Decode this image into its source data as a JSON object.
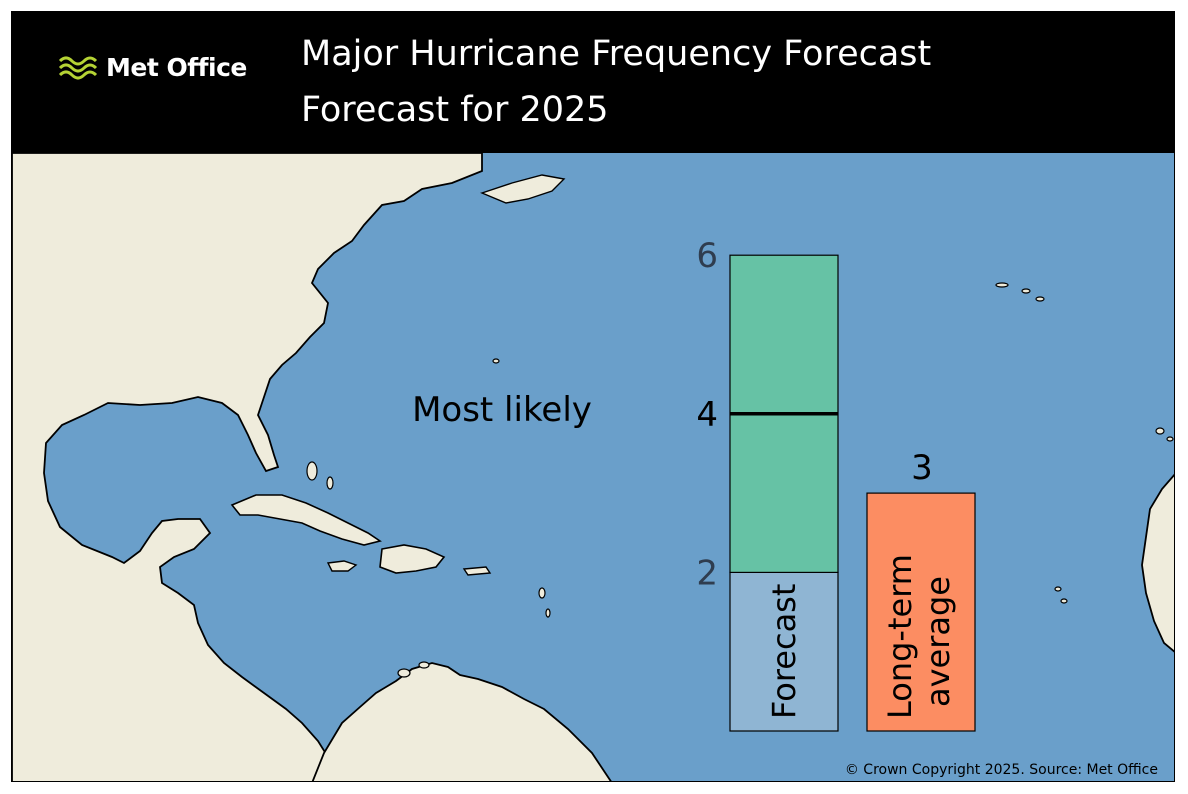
{
  "header": {
    "logo_text": "Met Office",
    "title": "Major Hurricane Frequency Forecast",
    "subtitle": "Forecast for 2025"
  },
  "colors": {
    "header_bg": "#000000",
    "ocean": "#6a9fca",
    "land": "#efecdc",
    "forecast_range": "#66c2a5",
    "forecast_base": "#8fb5d3",
    "long_term_average": "#fc8d62",
    "logo_green": "#b5d334"
  },
  "chart_data": {
    "type": "bar",
    "annotation": "Most likely",
    "categories": [
      "Forecast",
      "Long-term average"
    ],
    "forecast": {
      "label": "Forecast",
      "range_low": 2,
      "range_high": 6,
      "most_likely": 4,
      "tick_labels": [
        "2",
        "4",
        "6"
      ]
    },
    "long_term_average": {
      "label_lines": [
        "Long-term",
        "average"
      ],
      "value": 3,
      "value_label": "3"
    },
    "ylim": [
      0,
      6
    ]
  },
  "footer": {
    "copyright": "© Crown Copyright 2025. Source: Met Office"
  }
}
